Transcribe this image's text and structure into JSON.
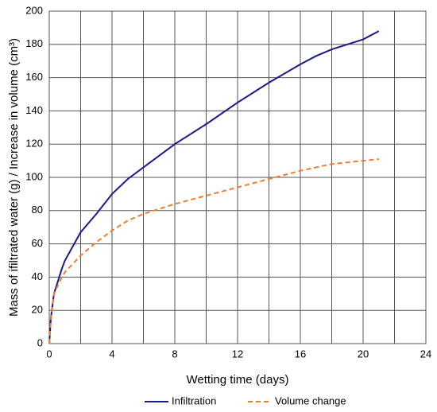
{
  "chart_data": {
    "type": "line",
    "x_label": "Wetting time (days)",
    "y_label": "Mass of ifiltrated water (g) / Increase in volume (cm³)",
    "xlim": [
      0,
      24
    ],
    "xticks": [
      0,
      4,
      8,
      12,
      16,
      20,
      24
    ],
    "xminor": [
      2,
      6,
      10,
      14,
      18,
      22
    ],
    "ylim": [
      0,
      200
    ],
    "yticks": [
      0,
      20,
      40,
      60,
      80,
      100,
      120,
      140,
      160,
      180,
      200
    ],
    "grid": true,
    "series": [
      {
        "name": "Infiltration",
        "color": "#1a1a8c",
        "dash": false,
        "x": [
          0,
          0.1,
          0.3,
          0.8,
          1,
          2,
          3,
          4,
          5,
          6,
          8,
          10,
          12,
          14,
          16,
          17,
          18,
          20,
          21
        ],
        "values": [
          0,
          15,
          30,
          45,
          50,
          67,
          78,
          90,
          99,
          106,
          120,
          132,
          145,
          157,
          168,
          173,
          177,
          183,
          188
        ]
      },
      {
        "name": "Volume change",
        "color": "#ee7d31",
        "dash": true,
        "x": [
          0,
          0.1,
          0.3,
          0.8,
          1,
          2,
          3,
          4,
          5,
          6,
          8,
          10,
          12,
          14,
          16,
          18,
          20,
          21
        ],
        "values": [
          0,
          14,
          30,
          40,
          43,
          53,
          61,
          68,
          74,
          78,
          84,
          89,
          94,
          99,
          104,
          108,
          110,
          111
        ]
      }
    ]
  }
}
